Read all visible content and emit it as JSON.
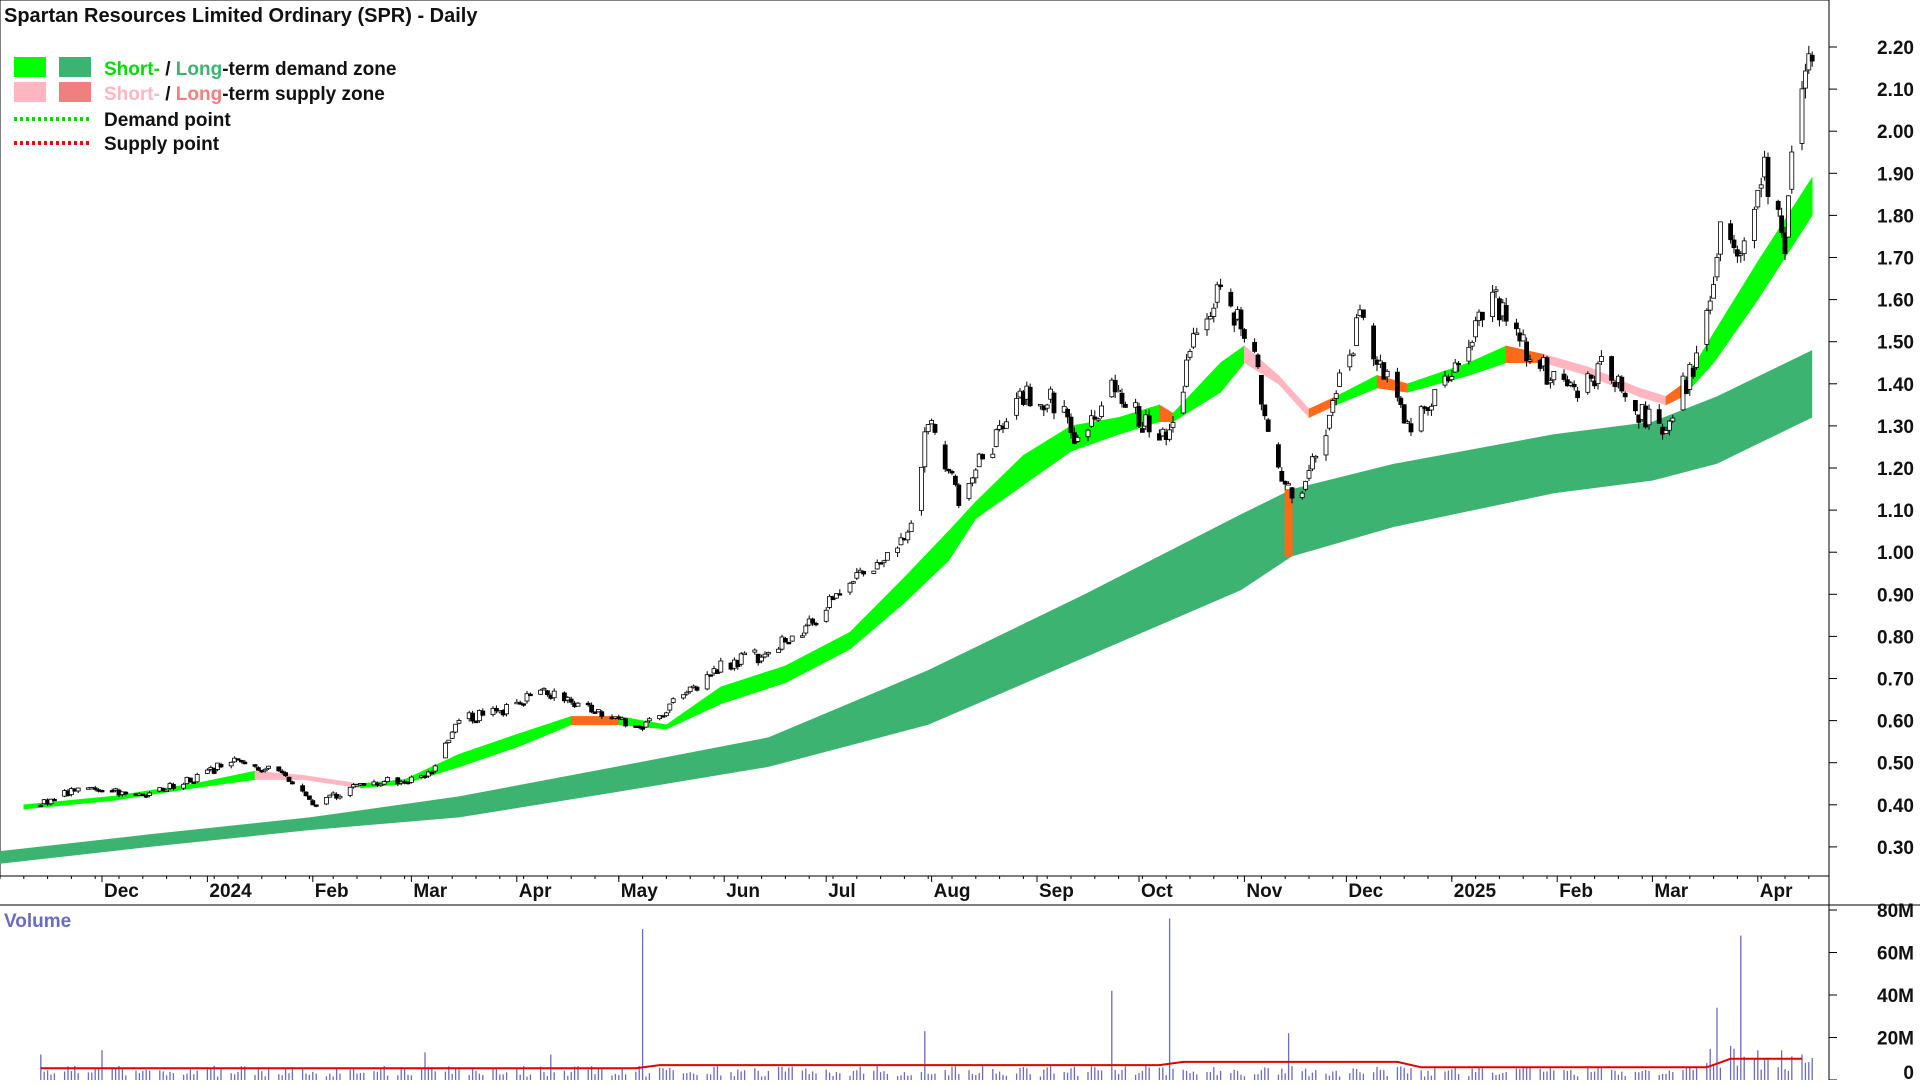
{
  "title": "Spartan Resources Limited Ordinary (SPR) - Daily",
  "legend": {
    "row1": {
      "short": "Short-",
      "sep": " / ",
      "long": "Long",
      "rest": "-term demand zone"
    },
    "row2": {
      "short": "Short-",
      "sep": " / ",
      "long": "Long",
      "rest": "-term supply zone"
    },
    "row3": "Demand point",
    "row4": "Supply point"
  },
  "colors": {
    "short_demand": "#00ff00",
    "long_demand": "#3cb371",
    "short_supply": "#ffb6c1",
    "long_supply": "#f08080",
    "transition": "#ff6a1a",
    "demand_point": "#00dd00",
    "supply_point": "#ff0000",
    "volume_bar": "#6b6bbf",
    "volume_avg": "#e00000",
    "volume_title": "#6b6bbf"
  },
  "chart_data": {
    "type": "candlestick",
    "title": "Spartan Resources Limited Ordinary (SPR) - Daily",
    "x_labels": [
      "Dec",
      "2024",
      "Feb",
      "Mar",
      "Apr",
      "May",
      "Jun",
      "Jul",
      "Aug",
      "Sep",
      "Oct",
      "Nov",
      "Dec",
      "2025",
      "Feb",
      "Mar",
      "Apr"
    ],
    "y_ticks": [
      "2.20",
      "2.10",
      "2.00",
      "1.90",
      "1.80",
      "1.70",
      "1.60",
      "1.50",
      "1.40",
      "1.30",
      "1.20",
      "1.10",
      "1.00",
      "0.90",
      "0.80",
      "0.70",
      "0.60",
      "0.50",
      "0.40",
      "0.30"
    ],
    "y_range": [
      0.22,
      2.24
    ],
    "price_path": [
      {
        "date": "2023-11-13",
        "close": 0.4
      },
      {
        "date": "2023-11-27",
        "close": 0.45
      },
      {
        "date": "2023-12-11",
        "close": 0.42
      },
      {
        "date": "2023-12-27",
        "close": 0.46
      },
      {
        "date": "2024-01-10",
        "close": 0.51
      },
      {
        "date": "2024-01-24",
        "close": 0.47
      },
      {
        "date": "2024-02-02",
        "close": 0.4
      },
      {
        "date": "2024-02-15",
        "close": 0.45
      },
      {
        "date": "2024-02-28",
        "close": 0.46
      },
      {
        "date": "2024-03-07",
        "close": 0.48
      },
      {
        "date": "2024-03-15",
        "close": 0.6
      },
      {
        "date": "2024-03-26",
        "close": 0.62
      },
      {
        "date": "2024-04-10",
        "close": 0.67
      },
      {
        "date": "2024-04-24",
        "close": 0.62
      },
      {
        "date": "2024-05-08",
        "close": 0.58
      },
      {
        "date": "2024-05-20",
        "close": 0.66
      },
      {
        "date": "2024-05-31",
        "close": 0.73
      },
      {
        "date": "2024-06-14",
        "close": 0.76
      },
      {
        "date": "2024-06-27",
        "close": 0.83
      },
      {
        "date": "2024-07-05",
        "close": 0.92
      },
      {
        "date": "2024-07-15",
        "close": 0.95
      },
      {
        "date": "2024-07-26",
        "close": 1.07
      },
      {
        "date": "2024-07-31",
        "close": 1.31
      },
      {
        "date": "2024-08-09",
        "close": 1.13
      },
      {
        "date": "2024-08-19",
        "close": 1.26
      },
      {
        "date": "2024-08-29",
        "close": 1.38
      },
      {
        "date": "2024-09-06",
        "close": 1.36
      },
      {
        "date": "2024-09-13",
        "close": 1.27
      },
      {
        "date": "2024-09-24",
        "close": 1.4
      },
      {
        "date": "2024-10-03",
        "close": 1.3
      },
      {
        "date": "2024-10-10",
        "close": 1.28
      },
      {
        "date": "2024-10-18",
        "close": 1.52
      },
      {
        "date": "2024-10-24",
        "close": 1.62
      },
      {
        "date": "2024-11-04",
        "close": 1.48
      },
      {
        "date": "2024-11-06",
        "close": 1.34
      },
      {
        "date": "2024-11-12",
        "close": 1.15
      },
      {
        "date": "2024-11-18",
        "close": 1.13
      },
      {
        "date": "2024-11-25",
        "close": 1.3
      },
      {
        "date": "2024-12-05",
        "close": 1.55
      },
      {
        "date": "2024-12-13",
        "close": 1.42
      },
      {
        "date": "2024-12-20",
        "close": 1.3
      },
      {
        "date": "2025-01-06",
        "close": 1.5
      },
      {
        "date": "2025-01-14",
        "close": 1.6
      },
      {
        "date": "2025-01-24",
        "close": 1.46
      },
      {
        "date": "2025-02-07",
        "close": 1.36
      },
      {
        "date": "2025-02-14",
        "close": 1.45
      },
      {
        "date": "2025-02-24",
        "close": 1.33
      },
      {
        "date": "2025-03-04",
        "close": 1.3
      },
      {
        "date": "2025-03-12",
        "close": 1.42
      },
      {
        "date": "2025-03-18",
        "close": 1.59
      },
      {
        "date": "2025-03-21",
        "close": 1.75
      },
      {
        "date": "2025-03-28",
        "close": 1.73
      },
      {
        "date": "2025-04-03",
        "close": 1.9
      },
      {
        "date": "2025-04-07",
        "close": 1.78
      },
      {
        "date": "2025-04-09",
        "close": 1.72
      },
      {
        "date": "2025-04-11",
        "close": 1.96
      },
      {
        "date": "2025-04-15",
        "close": 2.1
      },
      {
        "date": "2025-04-17",
        "close": 2.19
      }
    ],
    "short_term_zone": [
      {
        "date": "2023-11-08",
        "upper": 0.4,
        "lower": 0.39,
        "state": "demand"
      },
      {
        "date": "2023-12-04",
        "upper": 0.42,
        "lower": 0.41,
        "state": "demand"
      },
      {
        "date": "2023-12-28",
        "upper": 0.45,
        "lower": 0.44,
        "state": "demand"
      },
      {
        "date": "2024-01-15",
        "upper": 0.48,
        "lower": 0.46,
        "state": "demand"
      },
      {
        "date": "2024-01-29",
        "upper": 0.47,
        "lower": 0.46,
        "state": "supply"
      },
      {
        "date": "2024-02-15",
        "upper": 0.45,
        "lower": 0.44,
        "state": "supply"
      },
      {
        "date": "2024-02-28",
        "upper": 0.46,
        "lower": 0.45,
        "state": "demand"
      },
      {
        "date": "2024-03-15",
        "upper": 0.52,
        "lower": 0.49,
        "state": "demand"
      },
      {
        "date": "2024-04-02",
        "upper": 0.57,
        "lower": 0.54,
        "state": "demand"
      },
      {
        "date": "2024-04-17",
        "upper": 0.61,
        "lower": 0.59,
        "state": "demand"
      },
      {
        "date": "2024-05-01",
        "upper": 0.61,
        "lower": 0.59,
        "state": "transition"
      },
      {
        "date": "2024-05-15",
        "upper": 0.59,
        "lower": 0.58,
        "state": "demand"
      },
      {
        "date": "2024-05-31",
        "upper": 0.68,
        "lower": 0.64,
        "state": "demand"
      },
      {
        "date": "2024-06-19",
        "upper": 0.73,
        "lower": 0.69,
        "state": "demand"
      },
      {
        "date": "2024-07-08",
        "upper": 0.81,
        "lower": 0.77,
        "state": "demand"
      },
      {
        "date": "2024-07-24",
        "upper": 0.94,
        "lower": 0.88,
        "state": "demand"
      },
      {
        "date": "2024-08-06",
        "upper": 1.05,
        "lower": 0.98,
        "state": "demand"
      },
      {
        "date": "2024-08-14",
        "upper": 1.12,
        "lower": 1.08,
        "state": "demand"
      },
      {
        "date": "2024-08-28",
        "upper": 1.23,
        "lower": 1.16,
        "state": "demand"
      },
      {
        "date": "2024-09-11",
        "upper": 1.3,
        "lower": 1.24,
        "state": "demand"
      },
      {
        "date": "2024-09-25",
        "upper": 1.32,
        "lower": 1.28,
        "state": "demand"
      },
      {
        "date": "2024-10-07",
        "upper": 1.35,
        "lower": 1.31,
        "state": "demand"
      },
      {
        "date": "2024-10-11",
        "upper": 1.33,
        "lower": 1.31,
        "state": "transition"
      },
      {
        "date": "2024-10-25",
        "upper": 1.45,
        "lower": 1.38,
        "state": "demand"
      },
      {
        "date": "2024-11-01",
        "upper": 1.49,
        "lower": 1.45,
        "state": "demand"
      },
      {
        "date": "2024-11-11",
        "upper": 1.42,
        "lower": 1.4,
        "state": "supply"
      },
      {
        "date": "2024-11-20",
        "upper": 1.34,
        "lower": 1.32,
        "state": "supply"
      },
      {
        "date": "2024-11-28",
        "upper": 1.37,
        "lower": 1.35,
        "state": "transition"
      },
      {
        "date": "2024-12-10",
        "upper": 1.42,
        "lower": 1.39,
        "state": "demand"
      },
      {
        "date": "2024-12-19",
        "upper": 1.4,
        "lower": 1.38,
        "state": "transition"
      },
      {
        "date": "2025-01-06",
        "upper": 1.45,
        "lower": 1.42,
        "state": "demand"
      },
      {
        "date": "2025-01-17",
        "upper": 1.49,
        "lower": 1.45,
        "state": "demand"
      },
      {
        "date": "2025-01-28",
        "upper": 1.47,
        "lower": 1.45,
        "state": "transition"
      },
      {
        "date": "2025-02-10",
        "upper": 1.44,
        "lower": 1.42,
        "state": "supply"
      },
      {
        "date": "2025-02-25",
        "upper": 1.39,
        "lower": 1.37,
        "state": "supply"
      },
      {
        "date": "2025-03-05",
        "upper": 1.37,
        "lower": 1.35,
        "state": "supply"
      },
      {
        "date": "2025-03-10",
        "upper": 1.4,
        "lower": 1.37,
        "state": "transition"
      },
      {
        "date": "2025-03-19",
        "upper": 1.52,
        "lower": 1.45,
        "state": "demand"
      },
      {
        "date": "2025-04-01",
        "upper": 1.69,
        "lower": 1.6,
        "state": "demand"
      },
      {
        "date": "2025-04-17",
        "upper": 1.89,
        "lower": 1.8,
        "state": "demand"
      }
    ],
    "long_term_zone": [
      {
        "date": "2023-11-01",
        "upper": 0.29,
        "lower": 0.26
      },
      {
        "date": "2023-12-15",
        "upper": 0.33,
        "lower": 0.3
      },
      {
        "date": "2024-01-31",
        "upper": 0.37,
        "lower": 0.34
      },
      {
        "date": "2024-03-15",
        "upper": 0.42,
        "lower": 0.37
      },
      {
        "date": "2024-04-30",
        "upper": 0.49,
        "lower": 0.43
      },
      {
        "date": "2024-06-14",
        "upper": 0.56,
        "lower": 0.49
      },
      {
        "date": "2024-07-31",
        "upper": 0.72,
        "lower": 0.59
      },
      {
        "date": "2024-09-15",
        "upper": 0.9,
        "lower": 0.75
      },
      {
        "date": "2024-10-31",
        "upper": 1.09,
        "lower": 0.91
      },
      {
        "date": "2024-11-15",
        "upper": 1.15,
        "lower": 0.99
      },
      {
        "date": "2024-12-15",
        "upper": 1.21,
        "lower": 1.06
      },
      {
        "date": "2025-01-31",
        "upper": 1.28,
        "lower": 1.14
      },
      {
        "date": "2025-03-01",
        "upper": 1.31,
        "lower": 1.17
      },
      {
        "date": "2025-03-20",
        "upper": 1.37,
        "lower": 1.21
      },
      {
        "date": "2025-04-17",
        "upper": 1.48,
        "lower": 1.32
      }
    ],
    "volume": {
      "title": "Volume",
      "y_ticks": [
        "80M",
        "60M",
        "40M",
        "20M",
        "0"
      ],
      "y_range": [
        0,
        80000000
      ],
      "typical_daily": 4000000,
      "average_level": 5500000,
      "spikes": [
        {
          "date": "2023-11-13",
          "value": 12000000
        },
        {
          "date": "2023-12-01",
          "value": 14000000
        },
        {
          "date": "2024-03-05",
          "value": 13000000
        },
        {
          "date": "2024-04-11",
          "value": 12000000
        },
        {
          "date": "2024-05-08",
          "value": 71000000
        },
        {
          "date": "2024-07-30",
          "value": 23000000
        },
        {
          "date": "2024-09-23",
          "value": 42000000
        },
        {
          "date": "2024-10-10",
          "value": 76000000
        },
        {
          "date": "2024-11-14",
          "value": 22000000
        },
        {
          "date": "2025-03-20",
          "value": 34000000
        },
        {
          "date": "2025-03-27",
          "value": 68000000
        }
      ]
    }
  }
}
